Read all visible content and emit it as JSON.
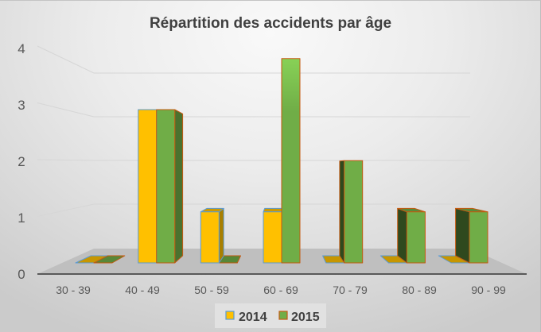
{
  "chart_data": {
    "type": "bar",
    "style": "3d-clustered-column",
    "title": "Répartition des accidents par âge",
    "xlabel": "",
    "ylabel": "",
    "categories": [
      "30 - 39",
      "40 - 49",
      "50 - 59",
      "60 - 69",
      "70 - 79",
      "80 - 89",
      "90 - 99"
    ],
    "series": [
      {
        "name": "2014",
        "values": [
          0,
          3,
          1,
          1,
          0,
          0,
          0
        ],
        "color": "#FFC000",
        "border": "#5B9BD5"
      },
      {
        "name": "2015",
        "values": [
          0,
          3,
          0,
          4,
          2,
          1,
          1
        ],
        "color": "#70AD47",
        "border": "#C55A11"
      }
    ],
    "ylim": [
      0,
      4
    ],
    "yticks": [
      0,
      1,
      2,
      3,
      4
    ],
    "grid": true,
    "legend_position": "bottom"
  }
}
